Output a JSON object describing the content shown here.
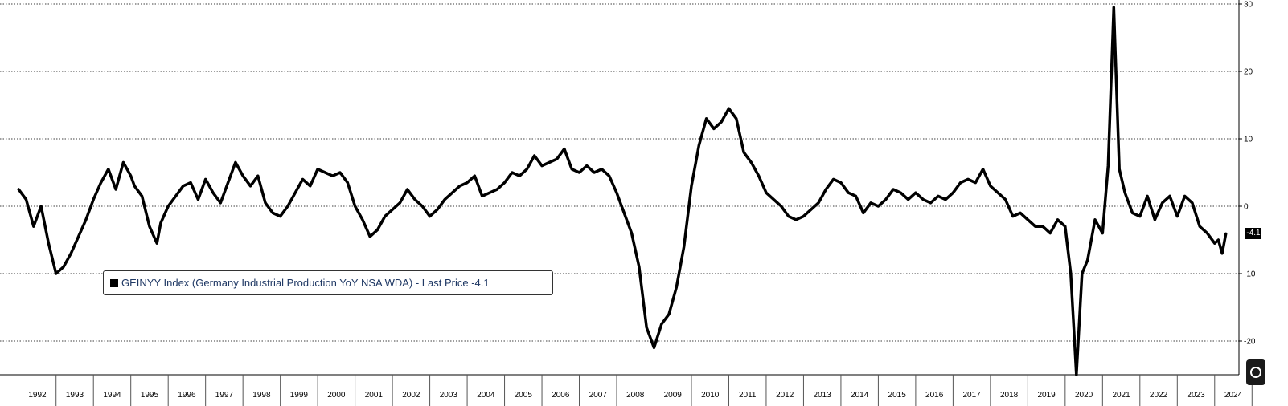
{
  "chart_data": {
    "type": "line",
    "title": "",
    "xlabel": "",
    "ylabel": "",
    "ylim": [
      -25,
      30
    ],
    "yticks": [
      30,
      20,
      10,
      0,
      -10,
      -20
    ],
    "grid": true,
    "legend_position": "bottom-left",
    "x_tick_labels": [
      "1992",
      "1993",
      "1994",
      "1995",
      "1996",
      "1997",
      "1998",
      "1999",
      "2000",
      "2001",
      "2002",
      "2003",
      "2004",
      "2005",
      "2006",
      "2007",
      "2008",
      "2009",
      "2010",
      "2011",
      "2012",
      "2013",
      "2014",
      "2015",
      "2016",
      "2017",
      "2018",
      "2019",
      "2020",
      "2021",
      "2022",
      "2023",
      "2024"
    ],
    "series": [
      {
        "name": "GEINYY Index (Germany Industrial Production YoY NSA WDA) - Last Price -4.1",
        "color": "#000000",
        "points": [
          [
            1992.0,
            2.5
          ],
          [
            1992.2,
            1.0
          ],
          [
            1992.4,
            -3.0
          ],
          [
            1992.6,
            0.0
          ],
          [
            1992.8,
            -5.5
          ],
          [
            1993.0,
            -10.0
          ],
          [
            1993.2,
            -9.0
          ],
          [
            1993.4,
            -7.0
          ],
          [
            1993.6,
            -4.5
          ],
          [
            1993.8,
            -2.0
          ],
          [
            1994.0,
            1.0
          ],
          [
            1994.2,
            3.5
          ],
          [
            1994.4,
            5.5
          ],
          [
            1994.6,
            2.5
          ],
          [
            1994.8,
            6.5
          ],
          [
            1995.0,
            4.5
          ],
          [
            1995.1,
            3.0
          ],
          [
            1995.3,
            1.5
          ],
          [
            1995.5,
            -3.0
          ],
          [
            1995.7,
            -5.5
          ],
          [
            1995.8,
            -2.5
          ],
          [
            1996.0,
            0.0
          ],
          [
            1996.2,
            1.5
          ],
          [
            1996.4,
            3.0
          ],
          [
            1996.6,
            3.5
          ],
          [
            1996.8,
            1.0
          ],
          [
            1997.0,
            4.0
          ],
          [
            1997.2,
            2.0
          ],
          [
            1997.4,
            0.5
          ],
          [
            1997.6,
            3.5
          ],
          [
            1997.8,
            6.5
          ],
          [
            1998.0,
            4.5
          ],
          [
            1998.2,
            3.0
          ],
          [
            1998.4,
            4.5
          ],
          [
            1998.6,
            0.5
          ],
          [
            1998.8,
            -1.0
          ],
          [
            1999.0,
            -1.5
          ],
          [
            1999.2,
            0.0
          ],
          [
            1999.4,
            2.0
          ],
          [
            1999.6,
            4.0
          ],
          [
            1999.8,
            3.0
          ],
          [
            2000.0,
            5.5
          ],
          [
            2000.2,
            5.0
          ],
          [
            2000.4,
            4.5
          ],
          [
            2000.6,
            5.0
          ],
          [
            2000.8,
            3.5
          ],
          [
            2001.0,
            0.0
          ],
          [
            2001.2,
            -2.0
          ],
          [
            2001.4,
            -4.5
          ],
          [
            2001.6,
            -3.5
          ],
          [
            2001.8,
            -1.5
          ],
          [
            2002.0,
            -0.5
          ],
          [
            2002.2,
            0.5
          ],
          [
            2002.4,
            2.5
          ],
          [
            2002.6,
            1.0
          ],
          [
            2002.8,
            0.0
          ],
          [
            2003.0,
            -1.5
          ],
          [
            2003.2,
            -0.5
          ],
          [
            2003.4,
            1.0
          ],
          [
            2003.6,
            2.0
          ],
          [
            2003.8,
            3.0
          ],
          [
            2004.0,
            3.5
          ],
          [
            2004.2,
            4.5
          ],
          [
            2004.4,
            1.5
          ],
          [
            2004.6,
            2.0
          ],
          [
            2004.8,
            2.5
          ],
          [
            2005.0,
            3.5
          ],
          [
            2005.2,
            5.0
          ],
          [
            2005.4,
            4.5
          ],
          [
            2005.6,
            5.5
          ],
          [
            2005.8,
            7.5
          ],
          [
            2006.0,
            6.0
          ],
          [
            2006.2,
            6.5
          ],
          [
            2006.4,
            7.0
          ],
          [
            2006.6,
            8.5
          ],
          [
            2006.8,
            5.5
          ],
          [
            2007.0,
            5.0
          ],
          [
            2007.2,
            6.0
          ],
          [
            2007.4,
            5.0
          ],
          [
            2007.6,
            5.5
          ],
          [
            2007.8,
            4.5
          ],
          [
            2008.0,
            2.0
          ],
          [
            2008.2,
            -1.0
          ],
          [
            2008.4,
            -4.0
          ],
          [
            2008.6,
            -9.0
          ],
          [
            2008.8,
            -18.0
          ],
          [
            2009.0,
            -21.0
          ],
          [
            2009.2,
            -17.5
          ],
          [
            2009.4,
            -16.0
          ],
          [
            2009.6,
            -12.0
          ],
          [
            2009.8,
            -6.0
          ],
          [
            2010.0,
            3.0
          ],
          [
            2010.2,
            9.0
          ],
          [
            2010.4,
            13.0
          ],
          [
            2010.6,
            11.5
          ],
          [
            2010.8,
            12.5
          ],
          [
            2011.0,
            14.5
          ],
          [
            2011.2,
            13.0
          ],
          [
            2011.4,
            8.0
          ],
          [
            2011.6,
            6.5
          ],
          [
            2011.8,
            4.5
          ],
          [
            2012.0,
            2.0
          ],
          [
            2012.2,
            1.0
          ],
          [
            2012.4,
            0.0
          ],
          [
            2012.6,
            -1.5
          ],
          [
            2012.8,
            -2.0
          ],
          [
            2013.0,
            -1.5
          ],
          [
            2013.2,
            -0.5
          ],
          [
            2013.4,
            0.5
          ],
          [
            2013.6,
            2.5
          ],
          [
            2013.8,
            4.0
          ],
          [
            2014.0,
            3.5
          ],
          [
            2014.2,
            2.0
          ],
          [
            2014.4,
            1.5
          ],
          [
            2014.6,
            -1.0
          ],
          [
            2014.8,
            0.5
          ],
          [
            2015.0,
            0.0
          ],
          [
            2015.2,
            1.0
          ],
          [
            2015.4,
            2.5
          ],
          [
            2015.6,
            2.0
          ],
          [
            2015.8,
            1.0
          ],
          [
            2016.0,
            2.0
          ],
          [
            2016.2,
            1.0
          ],
          [
            2016.4,
            0.5
          ],
          [
            2016.6,
            1.5
          ],
          [
            2016.8,
            1.0
          ],
          [
            2017.0,
            2.0
          ],
          [
            2017.2,
            3.5
          ],
          [
            2017.4,
            4.0
          ],
          [
            2017.6,
            3.5
          ],
          [
            2017.8,
            5.5
          ],
          [
            2018.0,
            3.0
          ],
          [
            2018.2,
            2.0
          ],
          [
            2018.4,
            1.0
          ],
          [
            2018.6,
            -1.5
          ],
          [
            2018.8,
            -1.0
          ],
          [
            2019.0,
            -2.0
          ],
          [
            2019.2,
            -3.0
          ],
          [
            2019.4,
            -3.0
          ],
          [
            2019.6,
            -4.0
          ],
          [
            2019.8,
            -2.0
          ],
          [
            2020.0,
            -3.0
          ],
          [
            2020.15,
            -10.0
          ],
          [
            2020.3,
            -25.0
          ],
          [
            2020.45,
            -10.0
          ],
          [
            2020.6,
            -8.0
          ],
          [
            2020.8,
            -2.0
          ],
          [
            2021.0,
            -4.0
          ],
          [
            2021.15,
            6.0
          ],
          [
            2021.3,
            29.5
          ],
          [
            2021.45,
            5.5
          ],
          [
            2021.6,
            2.0
          ],
          [
            2021.8,
            -1.0
          ],
          [
            2022.0,
            -1.5
          ],
          [
            2022.2,
            1.5
          ],
          [
            2022.4,
            -2.0
          ],
          [
            2022.6,
            0.5
          ],
          [
            2022.8,
            1.5
          ],
          [
            2023.0,
            -1.5
          ],
          [
            2023.2,
            1.5
          ],
          [
            2023.4,
            0.5
          ],
          [
            2023.6,
            -3.0
          ],
          [
            2023.8,
            -4.0
          ],
          [
            2024.0,
            -5.5
          ],
          [
            2024.1,
            -5.0
          ],
          [
            2024.2,
            -7.0
          ],
          [
            2024.3,
            -4.1
          ]
        ]
      }
    ],
    "last_value_label": "-4.1"
  }
}
